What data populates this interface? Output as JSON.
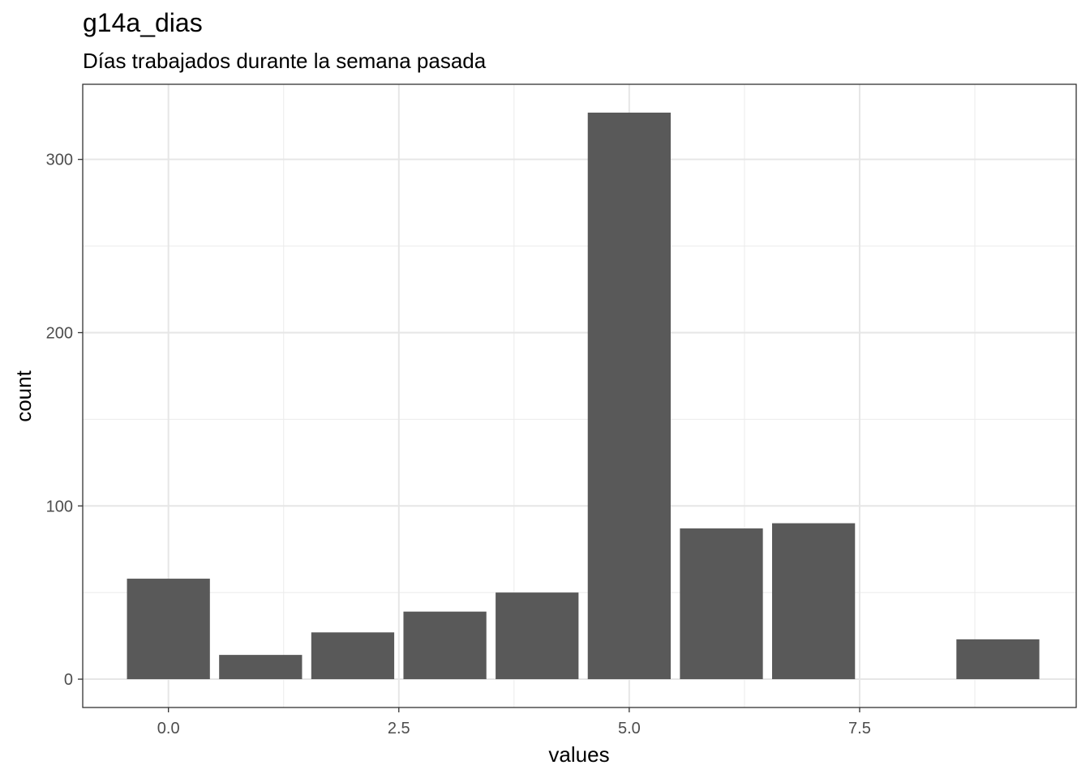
{
  "chart_data": {
    "type": "bar",
    "title": "g14a_dias",
    "subtitle": "Días trabajados durante la semana pasada",
    "xlabel": "values",
    "ylabel": "count",
    "x": [
      0,
      1,
      2,
      3,
      4,
      5,
      6,
      7,
      9
    ],
    "values": [
      58,
      14,
      27,
      39,
      50,
      327,
      87,
      90,
      23
    ],
    "xlim": [
      -0.93,
      9.85
    ],
    "ylim": [
      -16.35,
      343.35
    ],
    "x_ticks": [
      {
        "value": 0,
        "label": "0.0"
      },
      {
        "value": 2.5,
        "label": "2.5"
      },
      {
        "value": 5,
        "label": "5.0"
      },
      {
        "value": 7.5,
        "label": "7.5"
      }
    ],
    "y_ticks": [
      {
        "value": 0,
        "label": "0"
      },
      {
        "value": 100,
        "label": "100"
      },
      {
        "value": 200,
        "label": "200"
      },
      {
        "value": 300,
        "label": "300"
      }
    ],
    "bar_width": 0.9,
    "bar_color": "#595959",
    "grid": true,
    "legend": "none"
  }
}
